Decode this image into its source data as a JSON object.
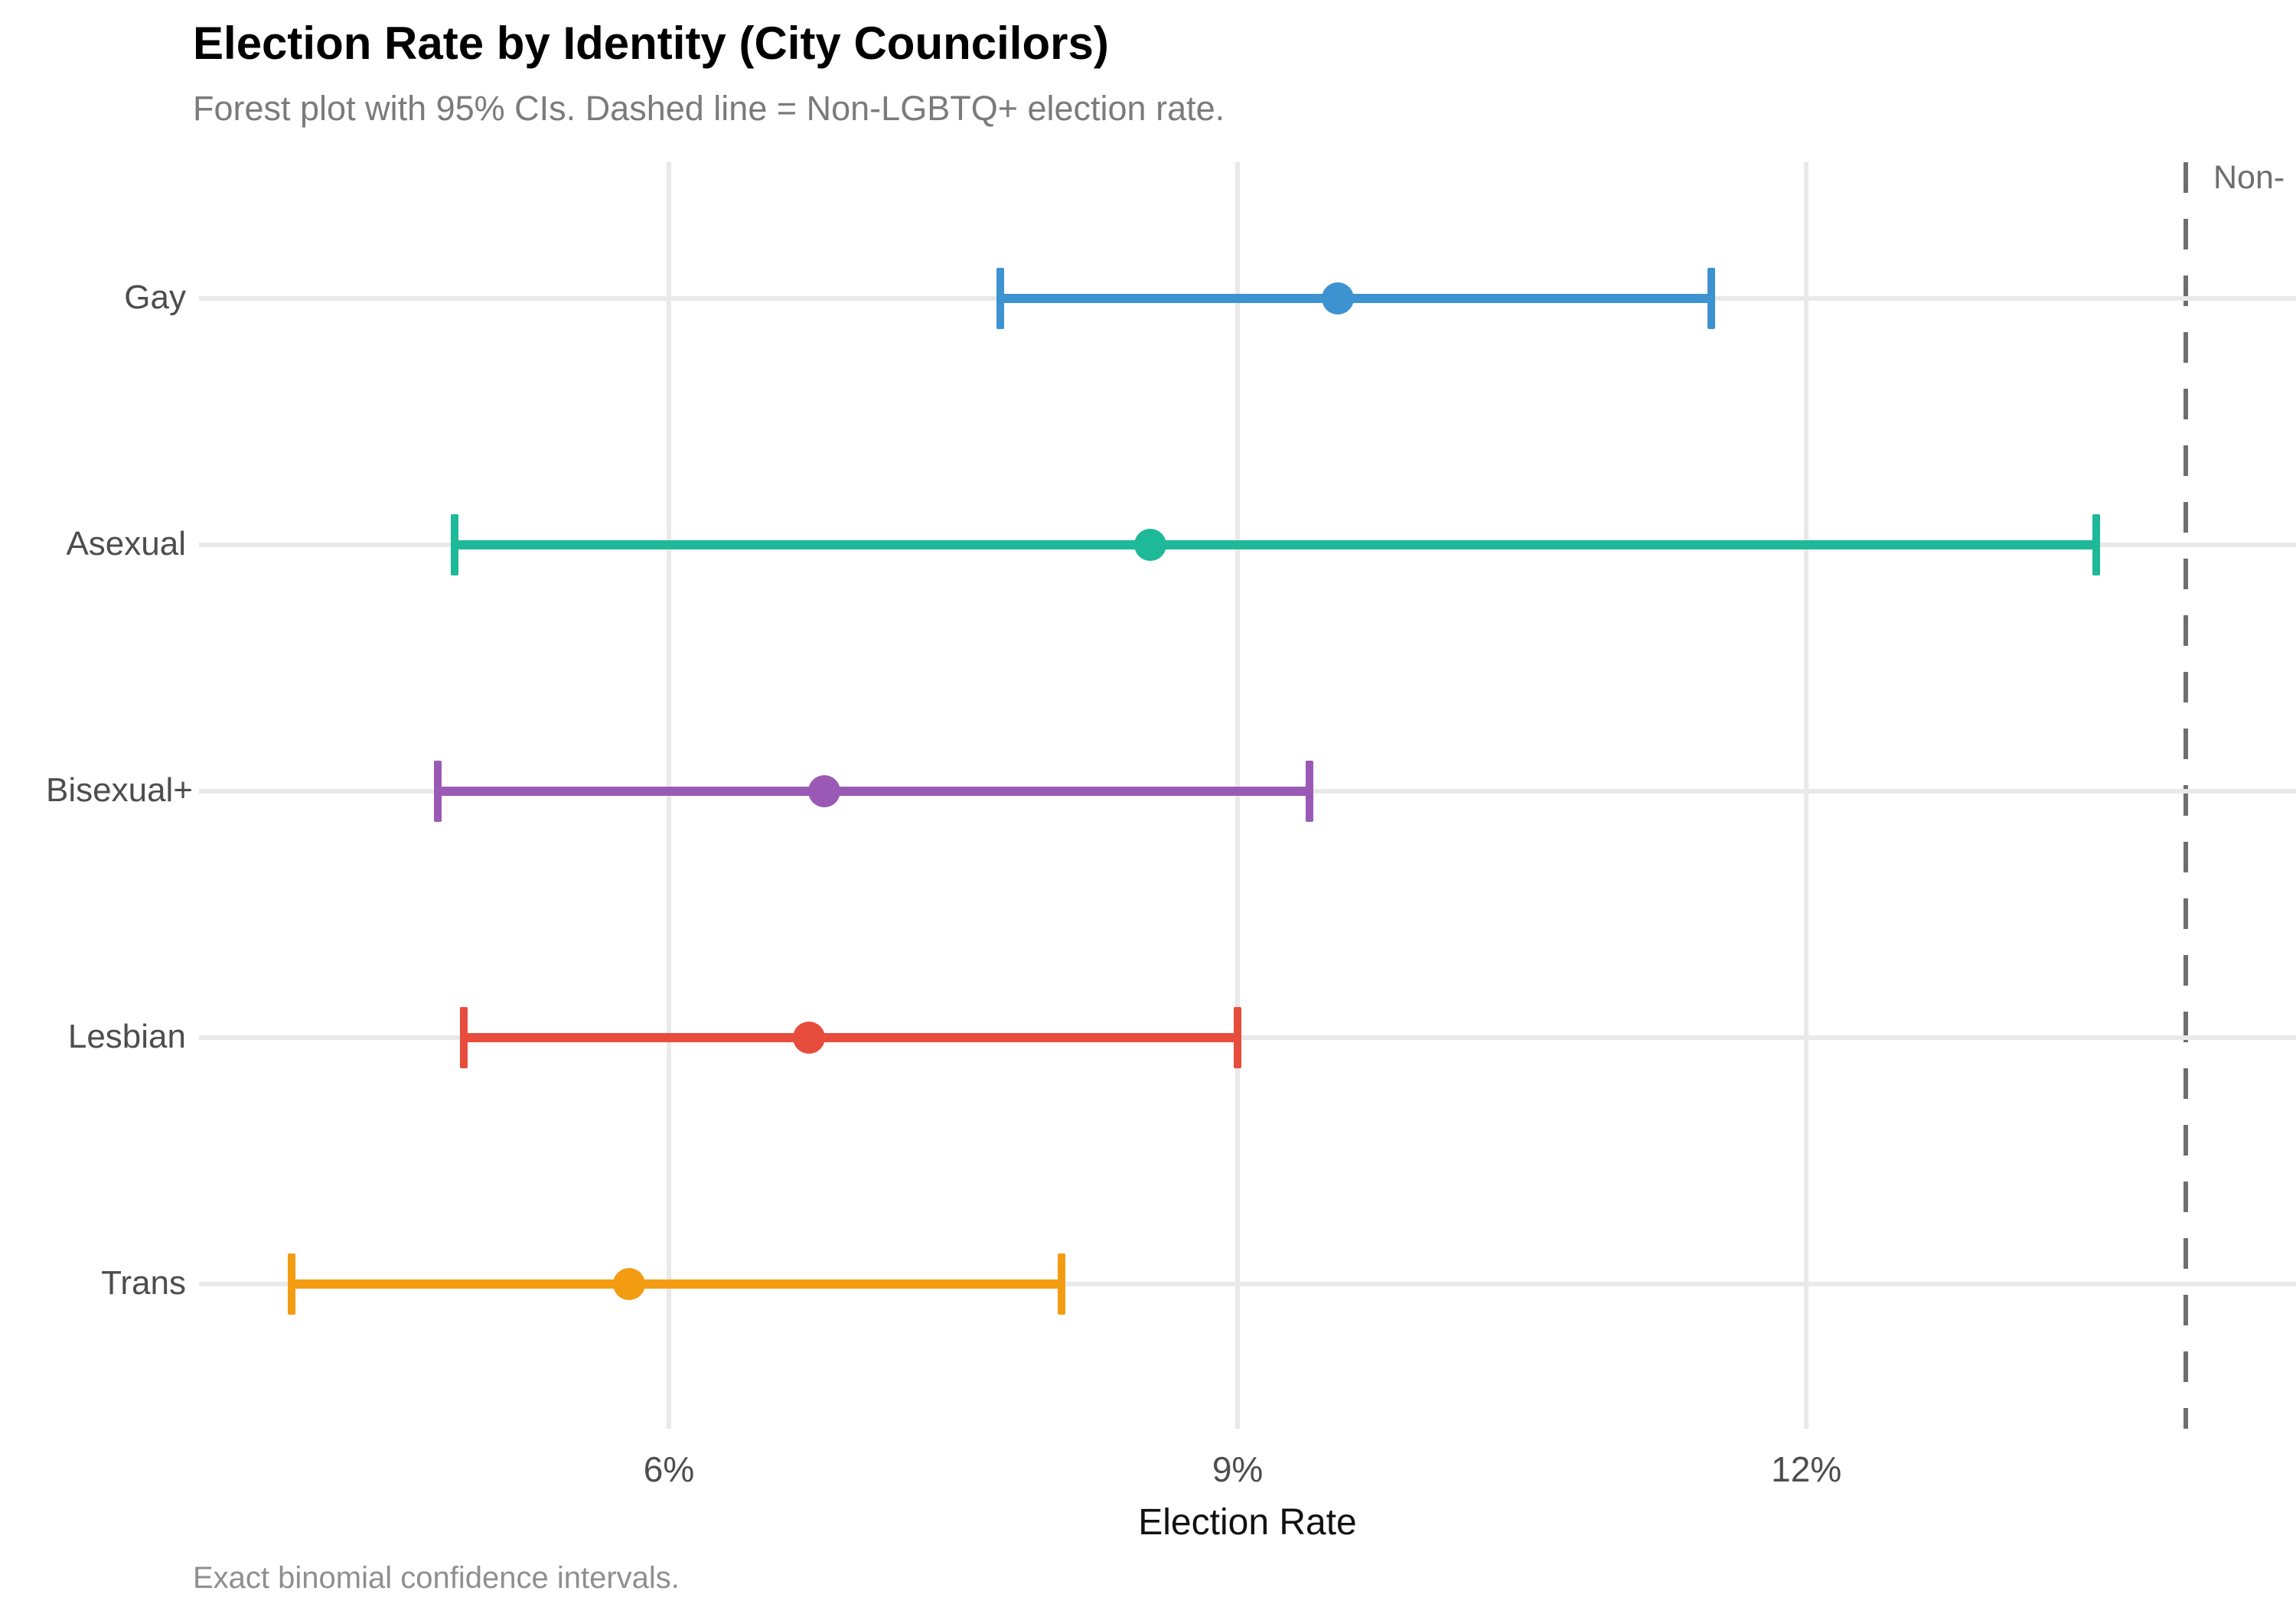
{
  "header": {
    "title": "Election Rate by Identity (City Councilors)",
    "subtitle": "Forest plot with 95% CIs. Dashed line = Non-LGBTQ+ election rate."
  },
  "chart_data": {
    "type": "forest",
    "orientation": "horizontal",
    "title": "Election Rate by Identity (City Councilors)",
    "subtitle": "Forest plot with 95% CIs. Dashed line = Non-LGBTQ+ election rate.",
    "xlabel": "Election Rate",
    "units": "percent",
    "categories": [
      "Gay",
      "Asexual",
      "Bisexual+",
      "Lesbian",
      "Trans"
    ],
    "series": [
      {
        "name": "Gay",
        "estimate": 9.53,
        "ci_low": 7.75,
        "ci_high": 11.5,
        "color": "#3d92d0"
      },
      {
        "name": "Asexual",
        "estimate": 8.54,
        "ci_low": 4.87,
        "ci_high": 13.53,
        "color": "#1db999"
      },
      {
        "name": "Bisexual+",
        "estimate": 6.82,
        "ci_low": 4.78,
        "ci_high": 9.38,
        "color": "#9b59b6"
      },
      {
        "name": "Lesbian",
        "estimate": 6.74,
        "ci_low": 4.92,
        "ci_high": 9.0,
        "color": "#e74c3c"
      },
      {
        "name": "Trans",
        "estimate": 5.79,
        "ci_low": 4.01,
        "ci_high": 8.07,
        "color": "#f39c12"
      }
    ],
    "x_ticks": [
      {
        "value": 6,
        "label": "6%"
      },
      {
        "value": 9,
        "label": "9%"
      },
      {
        "value": 12,
        "label": "12%"
      }
    ],
    "xlim": [
      3.5,
      14.6
    ],
    "reference_line": {
      "value": 14.0,
      "label": "Non-",
      "style": "dashed",
      "color": "#6e6e6e"
    },
    "grid": "major-only",
    "legend": "none",
    "ci_level": "95%"
  },
  "caption": "Exact binomial confidence intervals.",
  "colors": {
    "background": "#ffffff",
    "gridline": "#e9e9e9",
    "axis_text": "#4d4d4d",
    "title_text": "#000000",
    "subtitle_text": "#7b7b7b",
    "caption_text": "#8f8f8f",
    "reference_line": "#6e6e6e"
  }
}
